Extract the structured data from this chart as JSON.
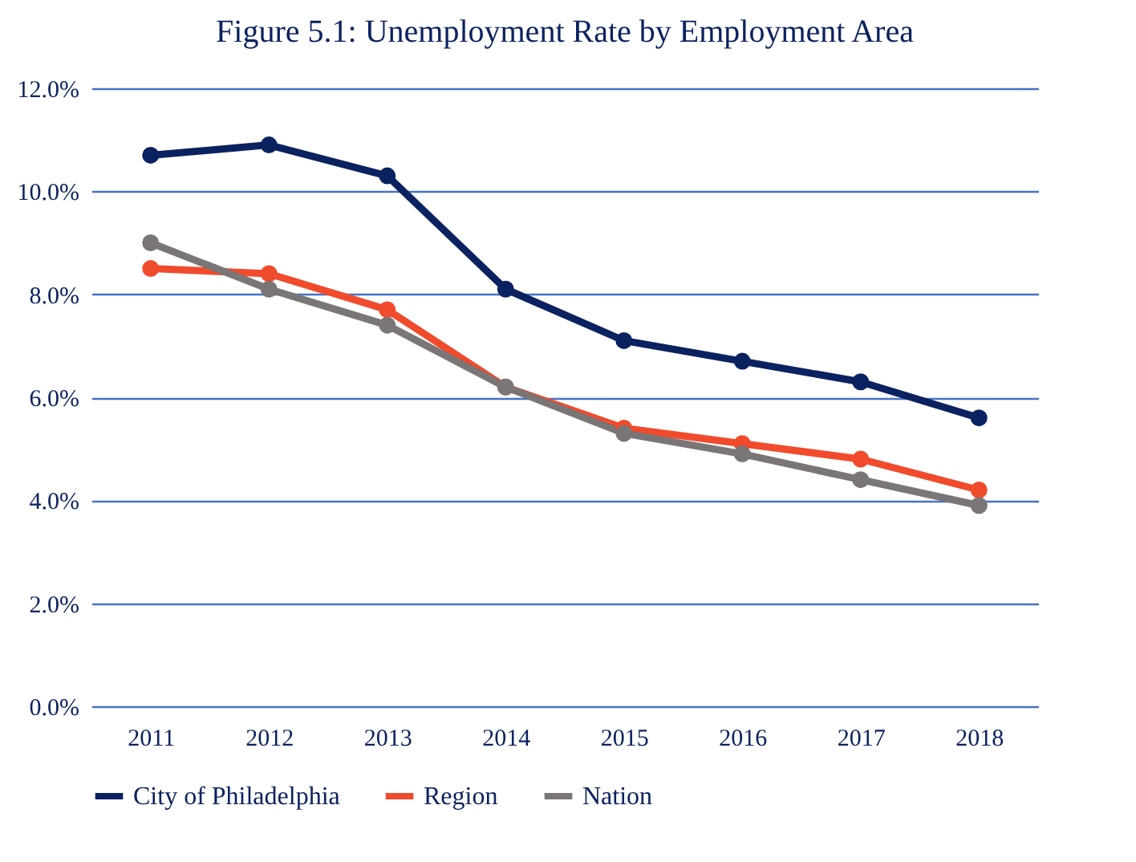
{
  "chart_data": {
    "type": "line",
    "title": "Figure 5.1: Unemployment Rate by Employment Area",
    "categories": [
      "2011",
      "2012",
      "2013",
      "2014",
      "2015",
      "2016",
      "2017",
      "2018"
    ],
    "series": [
      {
        "name": "City of Philadelphia",
        "color": "#0b2260",
        "values": [
          10.7,
          10.9,
          10.3,
          8.1,
          7.1,
          6.7,
          6.3,
          5.6
        ]
      },
      {
        "name": "Region",
        "color": "#f04b2c",
        "values": [
          8.5,
          8.4,
          7.7,
          6.2,
          5.4,
          5.1,
          4.8,
          4.2
        ]
      },
      {
        "name": "Nation",
        "color": "#7a7576",
        "values": [
          9.0,
          8.1,
          7.4,
          6.2,
          5.3,
          4.9,
          4.4,
          3.9
        ]
      }
    ],
    "ylim": [
      0,
      12
    ],
    "yticks": [
      {
        "value": 0,
        "label": "0.0%"
      },
      {
        "value": 2,
        "label": "2.0%"
      },
      {
        "value": 4,
        "label": "4.0%"
      },
      {
        "value": 6,
        "label": "6.0%"
      },
      {
        "value": 8,
        "label": "8.0%"
      },
      {
        "value": 10,
        "label": "10.0%"
      },
      {
        "value": 12,
        "label": "12.0%"
      }
    ],
    "grid": "y",
    "legend": "bottom",
    "marker": "circle",
    "line_style": "solid"
  }
}
